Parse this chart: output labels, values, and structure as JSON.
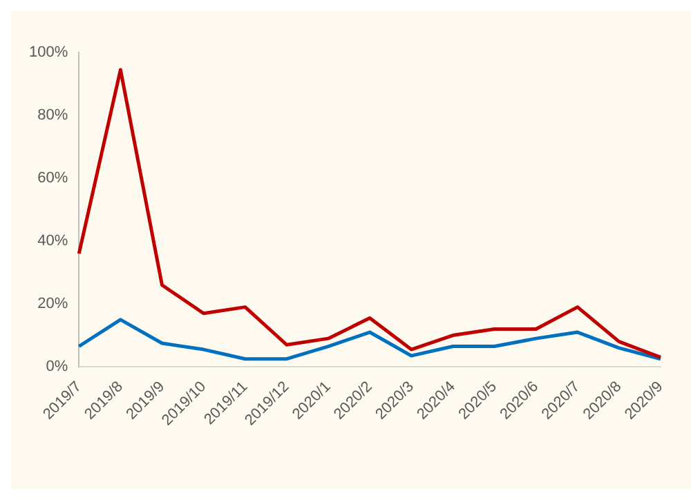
{
  "chart_data": {
    "type": "line",
    "categories": [
      "2019/7",
      "2019/8",
      "2019/9",
      "2019/10",
      "2019/11",
      "2019/12",
      "2020/1",
      "2020/2",
      "2020/3",
      "2020/4",
      "2020/5",
      "2020/6",
      "2020/7",
      "2020/8",
      "2020/9"
    ],
    "series": [
      {
        "color": "#c00000",
        "values": [
          36,
          94.5,
          26,
          17,
          19,
          7,
          9,
          15.5,
          5.5,
          10,
          12,
          12,
          19,
          8,
          3
        ]
      },
      {
        "color": "#0070c0",
        "values": [
          6.5,
          15,
          7.5,
          5.5,
          2.5,
          2.5,
          6.5,
          11,
          3.5,
          6.5,
          6.5,
          9,
          11,
          6,
          2.5
        ]
      }
    ],
    "ylim": [
      0,
      100
    ],
    "yticks": [
      {
        "value": 0,
        "label": "0%"
      },
      {
        "value": 20,
        "label": "20%"
      },
      {
        "value": 40,
        "label": "40%"
      },
      {
        "value": 60,
        "label": "60%"
      },
      {
        "value": 80,
        "label": "80%"
      },
      {
        "value": 100,
        "label": "100%"
      }
    ],
    "grid": false,
    "legend": false,
    "marker": "none",
    "line_style": "solid"
  }
}
